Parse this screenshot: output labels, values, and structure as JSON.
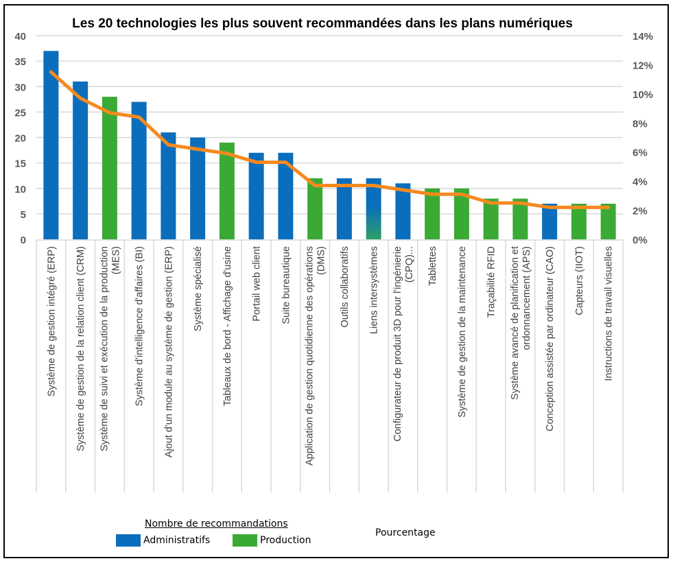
{
  "chart_data": {
    "type": "bar",
    "title": "Les 20 technologies les plus souvent recommandées dans les plans numériques",
    "xlabel": "",
    "ylabel": "",
    "ylim": [
      0,
      40
    ],
    "y2lim": [
      0,
      0.14
    ],
    "yticks": [
      "0",
      "5",
      "10",
      "15",
      "20",
      "25",
      "30",
      "35",
      "40"
    ],
    "y2ticks": [
      "0%",
      "2%",
      "4%",
      "6%",
      "8%",
      "10%",
      "12%",
      "14%"
    ],
    "grid": true,
    "categories": [
      [
        "Système de gestion intégré (ERP)"
      ],
      [
        "Système de gestion de la relation client (CRM)"
      ],
      [
        "Système de suivi et exécution de la production",
        "(MES)"
      ],
      [
        "Système d'intelligence d'affaires (BI)"
      ],
      [
        "Ajout d'un module au système de gestion (ERP)"
      ],
      [
        "Système spécialisé"
      ],
      [
        "Tableaux de bord - Affichage d'usine"
      ],
      [
        "Portail web client"
      ],
      [
        "Suite bureautique"
      ],
      [
        "Application de gestion quotidienne des opérations",
        "(DMS)"
      ],
      [
        "Outils collaboratifs"
      ],
      [
        "Liens intersystèmes"
      ],
      [
        "Configurateur de produit 3D pour l'ingénierie",
        "(CPQ)..."
      ],
      [
        "Tablettes"
      ],
      [
        "Système de gestion de la maintenance"
      ],
      [
        "Traçabilité RFID"
      ],
      [
        "Système avancé de planification et",
        "ordonnancement (APS)"
      ],
      [
        "Conception assistée par ordinateur (CAO)"
      ],
      [
        "Capteurs (IIOT)"
      ],
      [
        "Instructions de travail visuelles"
      ]
    ],
    "values": [
      37,
      31,
      28,
      27,
      21,
      20,
      19,
      17,
      17,
      12,
      12,
      12,
      11,
      10,
      10,
      8,
      8,
      7,
      7,
      7
    ],
    "bar_type": [
      "Administratifs",
      "Administratifs",
      "Production",
      "Administratifs",
      "Administratifs",
      "Administratifs",
      "Production",
      "Administratifs",
      "Administratifs",
      "Production",
      "Administratifs",
      "Mixte",
      "Administratifs",
      "Production",
      "Production",
      "Production",
      "Production",
      "Administratifs",
      "Production",
      "Production"
    ],
    "series": [
      {
        "name": "Nombre de recommandations",
        "type": "bar",
        "axis": "left",
        "values": [
          37,
          31,
          28,
          27,
          21,
          20,
          19,
          17,
          17,
          12,
          12,
          12,
          11,
          10,
          10,
          8,
          8,
          7,
          7,
          7
        ]
      },
      {
        "name": "Pourcentage",
        "type": "line",
        "axis": "right",
        "values": [
          0.115,
          0.097,
          0.087,
          0.084,
          0.065,
          0.062,
          0.059,
          0.053,
          0.053,
          0.037,
          0.037,
          0.037,
          0.034,
          0.031,
          0.031,
          0.025,
          0.025,
          0.022,
          0.022,
          0.022
        ]
      }
    ],
    "legend": {
      "placement": "bottom",
      "title": "Nombre de recommandations",
      "items": [
        {
          "label": "Administratifs",
          "color": "#0a6ebd"
        },
        {
          "label": "Production",
          "color": "#3aaa35"
        }
      ],
      "line_label": "Pourcentage"
    },
    "colors": {
      "admin": "#0a6ebd",
      "production": "#3aaa35",
      "line": "#f58a1f",
      "grid": "#d9d9d9",
      "tick_text": "#595959",
      "label_text": "#404040"
    }
  }
}
